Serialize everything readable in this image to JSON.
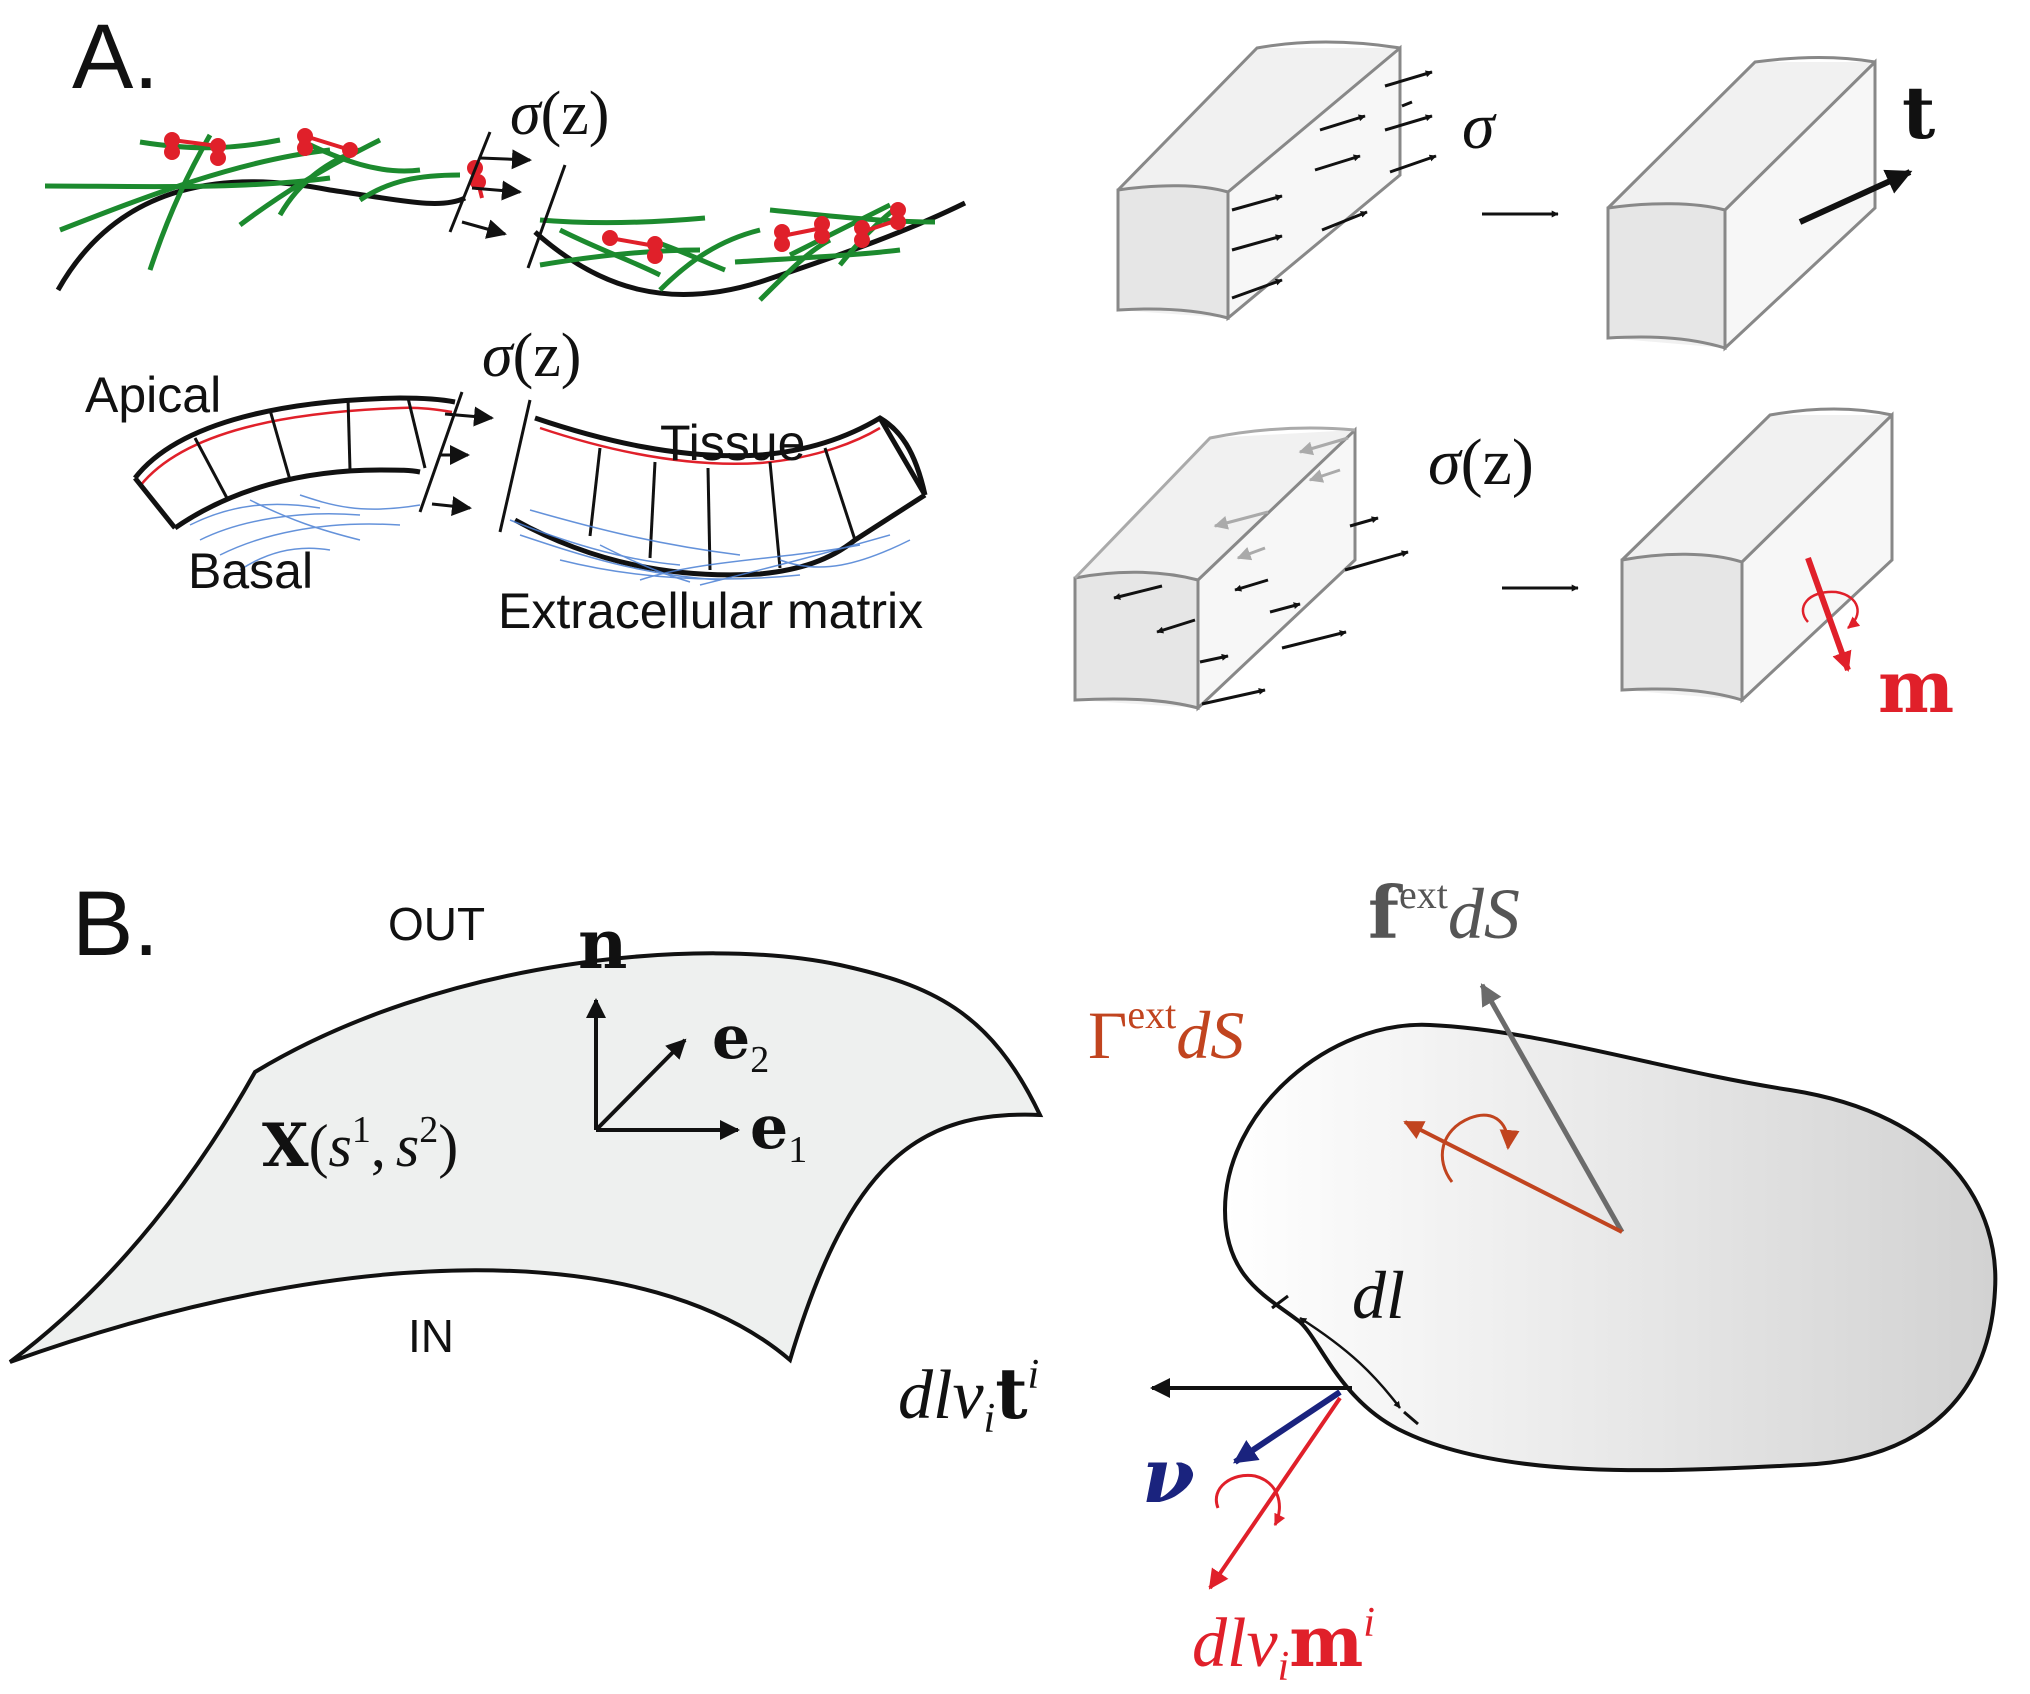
{
  "panels": {
    "a": {
      "label": "A.",
      "sigma_z_top": {
        "sym": "σ",
        "arg": "(z)"
      },
      "sigma_z_mid": {
        "sym": "σ",
        "arg": "(z)"
      },
      "apical": "Apical",
      "basal": "Basal",
      "tissue": "Tissue",
      "ecm": "Extracellular matrix",
      "sigma": "σ",
      "t_label": "t",
      "sigma_z_right": {
        "sym": "σ",
        "arg": "(z)"
      },
      "m_label": "m"
    },
    "b": {
      "label": "B.",
      "out_label": "OUT",
      "in_label": "IN",
      "n_label": "n",
      "e2": {
        "sym": "e",
        "sub": "2"
      },
      "e1": {
        "sym": "e",
        "sub": "1"
      },
      "X": {
        "sym": "X",
        "open": "(",
        "s": "s",
        "sup1": "1",
        "comma": ",",
        "s2": "s",
        "sup2": "2",
        "close": ")"
      },
      "fext": {
        "sym": "f",
        "sup": "ext",
        "tail": "dS"
      },
      "gext": {
        "sym": "Γ",
        "sup": "ext",
        "tail": "dS"
      },
      "dl": "dl",
      "dlnu_t": {
        "pre": "dlν",
        "sub": "i",
        "vec": "t",
        "sup": "i"
      },
      "nu": "ν",
      "dlnu_m": {
        "pre": "dlν",
        "sub": "i",
        "vec": "m",
        "sup": "i"
      }
    }
  },
  "colors": {
    "ink": "#111111",
    "green": "#1c8a2e",
    "red": "#e0202a",
    "blue": "#2a4bd0",
    "navy": "#1a237e",
    "rust": "#c1441f",
    "gray": "#6b6b6b",
    "light_gray": "#aaaaaa",
    "surface": "#eef0ef"
  }
}
